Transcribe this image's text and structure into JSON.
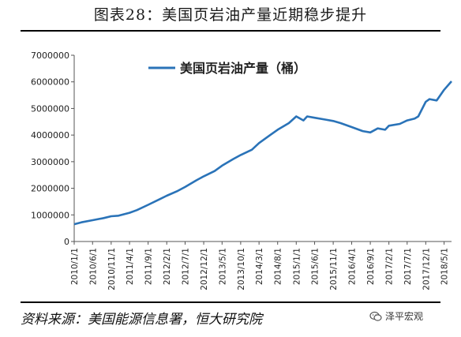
{
  "title": "图表28：美国页岩油产量近期稳步提升",
  "source": "资料来源：美国能源信息署，恒大研究院",
  "brand": "泽平宏观",
  "chart_data": {
    "type": "line",
    "y_ticks": [
      "0",
      "1000000",
      "2000000",
      "3000000",
      "4000000",
      "5000000",
      "6000000",
      "7000000"
    ],
    "ylim": [
      0,
      7000000
    ],
    "x_tick_labels": [
      "2010/1/1",
      "2010/6/1",
      "2010/11/1",
      "2011/4/1",
      "2011/9/1",
      "2012/2/1",
      "2012/7/1",
      "2012/12/1",
      "2013/5/1",
      "2013/10/1",
      "2014/3/1",
      "2014/8/1",
      "2015/1/1",
      "2015/6/1",
      "2015/11/1",
      "2016/4/1",
      "2016/9/1",
      "2017/2/1",
      "2017/7/1",
      "2017/12/1",
      "2018/5/1"
    ],
    "grid": false,
    "legend_position": "top-center",
    "series": [
      {
        "name": "美国页岩油产量（桶）",
        "color": "#2a73b8",
        "x": [
          "2010/1/1",
          "2010/3/1",
          "2010/6/1",
          "2010/9/1",
          "2010/11/1",
          "2011/1/1",
          "2011/4/1",
          "2011/6/1",
          "2011/9/1",
          "2011/12/1",
          "2012/2/1",
          "2012/5/1",
          "2012/7/1",
          "2012/10/1",
          "2012/12/1",
          "2013/3/1",
          "2013/5/1",
          "2013/8/1",
          "2013/10/1",
          "2014/1/1",
          "2014/3/1",
          "2014/6/1",
          "2014/8/1",
          "2014/11/1",
          "2015/1/1",
          "2015/3/1",
          "2015/4/1",
          "2015/6/1",
          "2015/9/1",
          "2015/11/1",
          "2016/1/1",
          "2016/4/1",
          "2016/7/1",
          "2016/9/1",
          "2016/11/1",
          "2017/1/1",
          "2017/2/1",
          "2017/5/1",
          "2017/7/1",
          "2017/9/1",
          "2017/10/1",
          "2017/12/1",
          "2018/1/1",
          "2018/3/1",
          "2018/5/1",
          "2018/7/1"
        ],
        "values": [
          650000,
          720000,
          800000,
          880000,
          950000,
          970000,
          1080000,
          1180000,
          1380000,
          1580000,
          1720000,
          1900000,
          2050000,
          2300000,
          2450000,
          2650000,
          2850000,
          3100000,
          3250000,
          3450000,
          3700000,
          4000000,
          4200000,
          4450000,
          4700000,
          4550000,
          4700000,
          4650000,
          4580000,
          4530000,
          4450000,
          4300000,
          4150000,
          4100000,
          4250000,
          4200000,
          4350000,
          4420000,
          4550000,
          4620000,
          4700000,
          5250000,
          5350000,
          5300000,
          5700000,
          6020000
        ]
      }
    ]
  }
}
